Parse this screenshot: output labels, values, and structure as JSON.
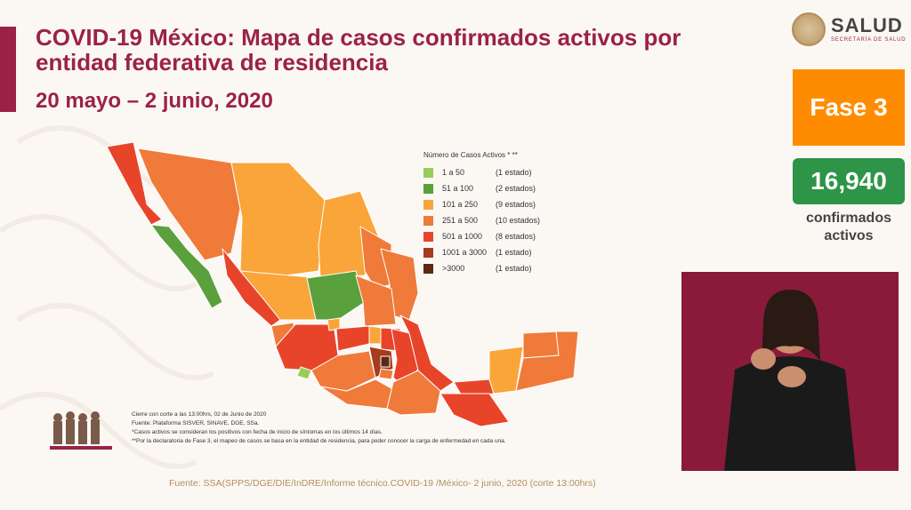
{
  "header": {
    "title": "COVID-19 México: Mapa de casos confirmados activos por entidad federativa de residencia",
    "date_range": "20 mayo – 2 junio, 2020"
  },
  "logo": {
    "name": "SALUD",
    "subtitle": "SECRETARÍA DE SALUD"
  },
  "phase": {
    "label": "Fase 3",
    "color": "#ff8c00"
  },
  "active_cases": {
    "value": "16,940",
    "label": "confirmados activos",
    "color": "#2e9448"
  },
  "legend": {
    "title": "Número de Casos Activos * **",
    "items": [
      {
        "range": "1 a 50",
        "count": "(1 estado)",
        "color": "#9acd58"
      },
      {
        "range": "51 a 100",
        "count": "(2 estados)",
        "color": "#5aa03c"
      },
      {
        "range": "101 a 250",
        "count": "(9 estados)",
        "color": "#f9a53a"
      },
      {
        "range": "251 a 500",
        "count": "(10 estados)",
        "color": "#f07a3a"
      },
      {
        "range": "501 a 1000",
        "count": "(8 estados)",
        "color": "#e8442a"
      },
      {
        "range": "1001 a 3000",
        "count": "(1 estado)",
        "color": "#a83a1e"
      },
      {
        "range": ">3000",
        "count": "(1 estado)",
        "color": "#5a2a16"
      }
    ]
  },
  "notes": [
    "Cierre con corte a las 13:00hrs, 02 de Junio de 2020",
    "Fuente: Plataforma SISVER, SINAVE, DGE, SSa.",
    "*Casos activos se consideran los positivos con fecha de inicio de síntomas en los últimos 14 días.",
    "**Por la declaratoria de Fase 3, el mapeo de casos se basa en la entidad de residencia, para poder conocer la carga de enfermedad en cada una."
  ],
  "source": "Fuente: SSA(SPPS/DGE/DIE/InDRE/Informe técnico.COVID-19 /México- 2 junio, 2020 (corte 13:00hrs)"
}
